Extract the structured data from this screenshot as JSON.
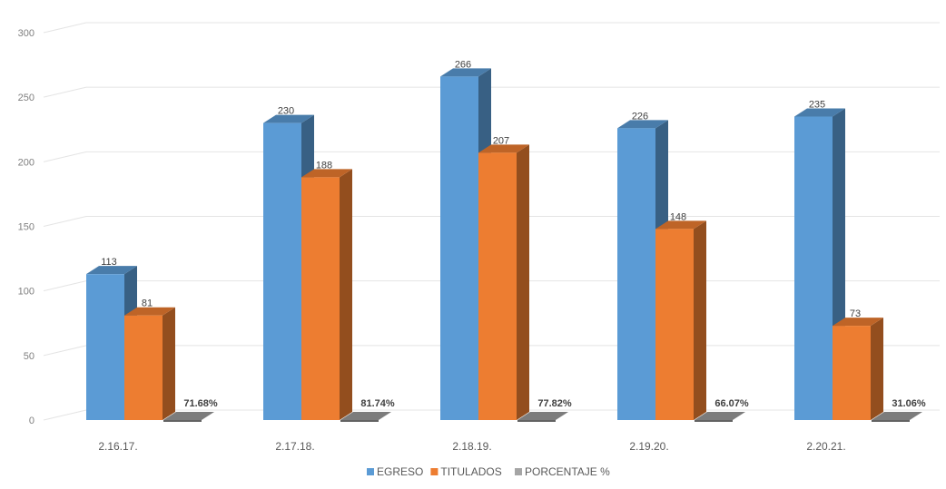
{
  "chart_data": {
    "type": "bar",
    "title": "",
    "xlabel": "",
    "ylabel": "",
    "ylim": [
      0,
      300
    ],
    "yticks": [
      0,
      50,
      100,
      150,
      200,
      250,
      300
    ],
    "grid": true,
    "legend_position": "bottom",
    "categories": [
      "2.16.17.",
      "2.17.18.",
      "2.18.19.",
      "2.19.20.",
      "2.20.21."
    ],
    "series": [
      {
        "name": "EGRESO",
        "color": "#5b9bd5",
        "values": [
          113,
          230,
          266,
          226,
          235
        ],
        "labels": [
          "113",
          "230",
          "266",
          "226",
          "235"
        ]
      },
      {
        "name": "TITULADOS",
        "color": "#ed7d31",
        "values": [
          81,
          188,
          207,
          148,
          73
        ],
        "labels": [
          "81",
          "188",
          "207",
          "148",
          "73"
        ]
      },
      {
        "name": "PORCENTAJE %",
        "color": "#a5a5a5",
        "values": [
          0.7168,
          0.8174,
          0.7782,
          0.6607,
          0.3106
        ],
        "labels": [
          "71.68%",
          "81.74%",
          "77.82%",
          "66.07%",
          "31.06%"
        ]
      }
    ]
  }
}
